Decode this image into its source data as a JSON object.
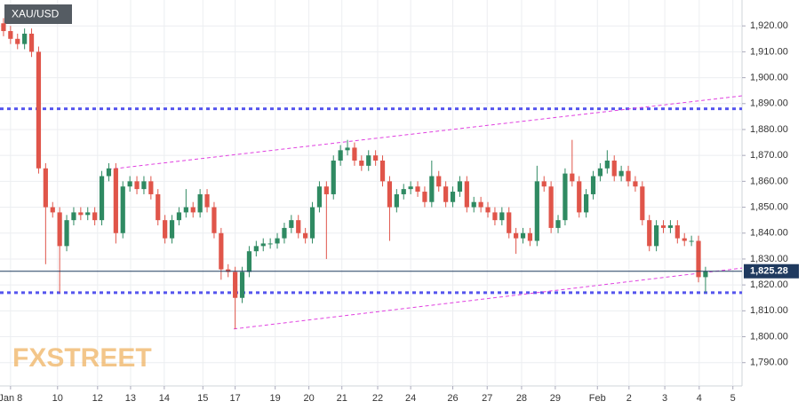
{
  "chart_data": {
    "type": "candlestick",
    "title": "XAU/USD",
    "watermark": "FXSTREET",
    "up_color": "#2f8a62",
    "down_color": "#e0554a",
    "grid": true,
    "xlim": [
      -0.5,
      105.2
    ],
    "ylim": [
      1781,
      1930
    ],
    "yticks": [
      {
        "value": 1790,
        "label": "1,790.00"
      },
      {
        "value": 1800,
        "label": "1,800.00"
      },
      {
        "value": 1810,
        "label": "1,810.00"
      },
      {
        "value": 1820,
        "label": "1,820.00"
      },
      {
        "value": 1830,
        "label": "1,830.00"
      },
      {
        "value": 1840,
        "label": "1,840.00"
      },
      {
        "value": 1850,
        "label": "1,850.00"
      },
      {
        "value": 1860,
        "label": "1,860.00"
      },
      {
        "value": 1870,
        "label": "1,870.00"
      },
      {
        "value": 1880,
        "label": "1,880.00"
      },
      {
        "value": 1890,
        "label": "1,890.00"
      },
      {
        "value": 1900,
        "label": "1,900.00"
      },
      {
        "value": 1910,
        "label": "1,910.00"
      },
      {
        "value": 1920,
        "label": "1,920.00"
      }
    ],
    "xticks": [
      {
        "value": 1,
        "label": "Jan 8"
      },
      {
        "value": 7.7,
        "label": "10"
      },
      {
        "value": 13.4,
        "label": "12"
      },
      {
        "value": 18.1,
        "label": "13"
      },
      {
        "value": 22.9,
        "label": "14"
      },
      {
        "value": 28.4,
        "label": "15"
      },
      {
        "value": 33,
        "label": "17"
      },
      {
        "value": 38.7,
        "label": "19"
      },
      {
        "value": 43.5,
        "label": "20"
      },
      {
        "value": 48.2,
        "label": "21"
      },
      {
        "value": 53.3,
        "label": "22"
      },
      {
        "value": 58,
        "label": "24"
      },
      {
        "value": 64,
        "label": "26"
      },
      {
        "value": 68.9,
        "label": "27"
      },
      {
        "value": 73.8,
        "label": "28"
      },
      {
        "value": 78.6,
        "label": "29"
      },
      {
        "value": 84.6,
        "label": "Feb"
      },
      {
        "value": 89.1,
        "label": "2"
      },
      {
        "value": 94.2,
        "label": "3"
      },
      {
        "value": 99.1,
        "label": "4"
      },
      {
        "value": 103.9,
        "label": "5"
      }
    ],
    "open": [
      1921,
      1918,
      1915,
      1913,
      1917,
      1910,
      1865,
      1850,
      1848,
      1835,
      1845,
      1848,
      1847,
      1848,
      1845,
      1862,
      1865,
      1840,
      1858,
      1860,
      1857,
      1860,
      1855,
      1845,
      1838,
      1845,
      1848,
      1850,
      1848,
      1855,
      1850,
      1840,
      1826,
      1825,
      1815,
      1825,
      1833,
      1835,
      1836,
      1836,
      1838,
      1842,
      1845,
      1840,
      1838,
      1850,
      1858,
      1855,
      1868,
      1872,
      1873,
      1868,
      1866,
      1870,
      1868,
      1860,
      1850,
      1855,
      1857,
      1858,
      1856,
      1852,
      1862,
      1858,
      1852,
      1856,
      1860,
      1850,
      1852,
      1850,
      1848,
      1845,
      1848,
      1840,
      1838,
      1840,
      1837,
      1860,
      1858,
      1842,
      1845,
      1863,
      1860,
      1848,
      1855,
      1862,
      1865,
      1868,
      1862,
      1864,
      1860,
      1858,
      1845,
      1835,
      1843,
      1842,
      1843,
      1838,
      1837,
      1837,
      1823
    ],
    "high": [
      1923,
      1920,
      1917,
      1919,
      1919,
      1912,
      1867,
      1852,
      1850,
      1847,
      1850,
      1850,
      1850,
      1850,
      1864,
      1867,
      1867,
      1860,
      1862,
      1862,
      1862,
      1862,
      1857,
      1847,
      1847,
      1850,
      1857,
      1852,
      1857,
      1857,
      1852,
      1842,
      1828,
      1827,
      1827,
      1835,
      1837,
      1838,
      1838,
      1840,
      1844,
      1847,
      1847,
      1842,
      1852,
      1860,
      1860,
      1870,
      1874,
      1876,
      1875,
      1870,
      1872,
      1872,
      1870,
      1862,
      1857,
      1859,
      1860,
      1860,
      1858,
      1868,
      1864,
      1860,
      1858,
      1862,
      1862,
      1854,
      1854,
      1852,
      1850,
      1850,
      1850,
      1842,
      1842,
      1842,
      1866,
      1862,
      1860,
      1847,
      1865,
      1876,
      1862,
      1857,
      1864,
      1867,
      1872,
      1870,
      1866,
      1866,
      1862,
      1860,
      1847,
      1845,
      1845,
      1845,
      1845,
      1840,
      1839,
      1839,
      1827
    ],
    "low": [
      1916,
      1913,
      1911,
      1911,
      1908,
      1863,
      1828,
      1846,
      1817,
      1833,
      1843,
      1845,
      1845,
      1843,
      1843,
      1860,
      1836,
      1838,
      1856,
      1855,
      1855,
      1853,
      1843,
      1836,
      1836,
      1843,
      1846,
      1846,
      1846,
      1848,
      1838,
      1822,
      1823,
      1803,
      1813,
      1823,
      1831,
      1833,
      1834,
      1834,
      1836,
      1840,
      1838,
      1836,
      1836,
      1848,
      1830,
      1853,
      1866,
      1870,
      1866,
      1864,
      1864,
      1866,
      1858,
      1837,
      1848,
      1853,
      1855,
      1854,
      1850,
      1850,
      1856,
      1850,
      1850,
      1854,
      1848,
      1848,
      1848,
      1846,
      1843,
      1843,
      1838,
      1832,
      1836,
      1835,
      1835,
      1856,
      1840,
      1840,
      1843,
      1858,
      1846,
      1846,
      1853,
      1860,
      1863,
      1860,
      1860,
      1858,
      1856,
      1843,
      1833,
      1833,
      1840,
      1840,
      1836,
      1835,
      1835,
      1821,
      1817
    ],
    "close": [
      1918,
      1915,
      1913,
      1917,
      1910,
      1865,
      1850,
      1848,
      1835,
      1845,
      1848,
      1847,
      1848,
      1845,
      1862,
      1865,
      1840,
      1858,
      1860,
      1857,
      1860,
      1855,
      1845,
      1838,
      1845,
      1848,
      1850,
      1848,
      1855,
      1850,
      1840,
      1826,
      1825,
      1815,
      1825,
      1833,
      1835,
      1836,
      1836,
      1838,
      1842,
      1845,
      1840,
      1838,
      1850,
      1858,
      1855,
      1868,
      1872,
      1873,
      1868,
      1866,
      1870,
      1868,
      1860,
      1850,
      1855,
      1857,
      1858,
      1856,
      1852,
      1862,
      1858,
      1852,
      1856,
      1860,
      1850,
      1852,
      1850,
      1848,
      1845,
      1848,
      1840,
      1838,
      1840,
      1837,
      1860,
      1858,
      1842,
      1845,
      1863,
      1860,
      1848,
      1855,
      1862,
      1865,
      1868,
      1862,
      1864,
      1860,
      1858,
      1845,
      1835,
      1843,
      1842,
      1843,
      1838,
      1837,
      1837,
      1823,
      1825.28
    ],
    "levels": [
      {
        "value": 1888,
        "color": "#5555ee"
      },
      {
        "value": 1817,
        "color": "#5555ee"
      }
    ],
    "trendlines": [
      {
        "x": [
          14.9,
          105.2
        ],
        "values": [
          1864.6,
          1893
        ],
        "color": "#e040e0"
      },
      {
        "x": [
          32.8,
          105.2
        ],
        "values": [
          1803,
          1826.5
        ],
        "color": "#e040e0"
      }
    ],
    "last_price": {
      "value": 1825.28,
      "label": "1,825.28",
      "color": "#1f3a5f"
    }
  }
}
